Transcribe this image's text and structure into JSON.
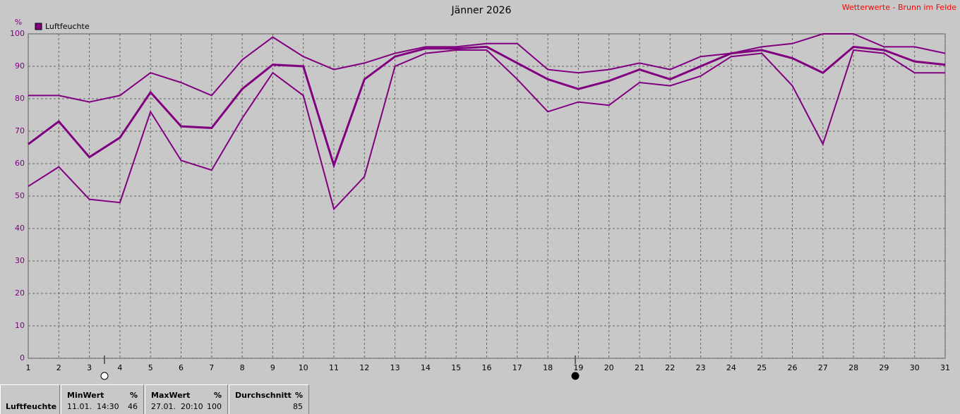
{
  "chart_data": {
    "type": "line",
    "title": "Jänner 2026",
    "subtitle": "Wetterwerte - Brunn im Felde",
    "y_unit": "%",
    "x": [
      1,
      2,
      3,
      4,
      5,
      6,
      7,
      8,
      9,
      10,
      11,
      12,
      13,
      14,
      15,
      16,
      17,
      18,
      19,
      20,
      21,
      22,
      23,
      24,
      25,
      26,
      27,
      28,
      29,
      30,
      31
    ],
    "xlim": [
      1,
      31
    ],
    "xticks": [
      1,
      2,
      3,
      4,
      5,
      6,
      7,
      8,
      9,
      10,
      11,
      12,
      13,
      14,
      15,
      16,
      17,
      18,
      19,
      20,
      21,
      22,
      23,
      24,
      25,
      26,
      27,
      28,
      29,
      30,
      31
    ],
    "ylim": [
      0,
      100
    ],
    "yticks": [
      0,
      10,
      20,
      30,
      40,
      50,
      60,
      70,
      80,
      90,
      100
    ],
    "grid": true,
    "series": [
      {
        "color": "#800080",
        "values": [
          81,
          81,
          79,
          81,
          88,
          85,
          81,
          92,
          99,
          93,
          89,
          91,
          94,
          96,
          96,
          97,
          97,
          89,
          88,
          89,
          91,
          89,
          93,
          94,
          96,
          97,
          100,
          100,
          96,
          96,
          94
        ]
      },
      {
        "name": "Luftfeuchte",
        "color": "#800080",
        "values": [
          66,
          73,
          62,
          68,
          82,
          71.5,
          71,
          83,
          90.5,
          90,
          59.5,
          86,
          93,
          95.5,
          95.5,
          96,
          91,
          86,
          83,
          85.5,
          89,
          86,
          90,
          94,
          95,
          92.5,
          88,
          96,
          95,
          91.5,
          90.5
        ]
      },
      {
        "color": "#800080",
        "values": [
          53,
          59,
          49,
          48,
          76,
          61,
          58,
          74,
          88,
          81,
          46,
          56,
          90,
          94,
          95,
          95,
          86,
          76,
          79,
          78,
          85,
          84,
          87,
          93,
          94,
          84,
          66,
          95,
          94,
          88,
          88
        ]
      }
    ]
  },
  "stats": {
    "row_label": "Luftfeuchte",
    "groups": [
      {
        "header": "MinWert",
        "unit": "%",
        "when": "11.01.  14:30",
        "value": "46"
      },
      {
        "header": "MaxWert",
        "unit": "%",
        "when": "27.01.  20:10",
        "value": "100"
      },
      {
        "header": "Durchschnitt",
        "unit": "%",
        "when": "",
        "value": "85"
      }
    ]
  }
}
